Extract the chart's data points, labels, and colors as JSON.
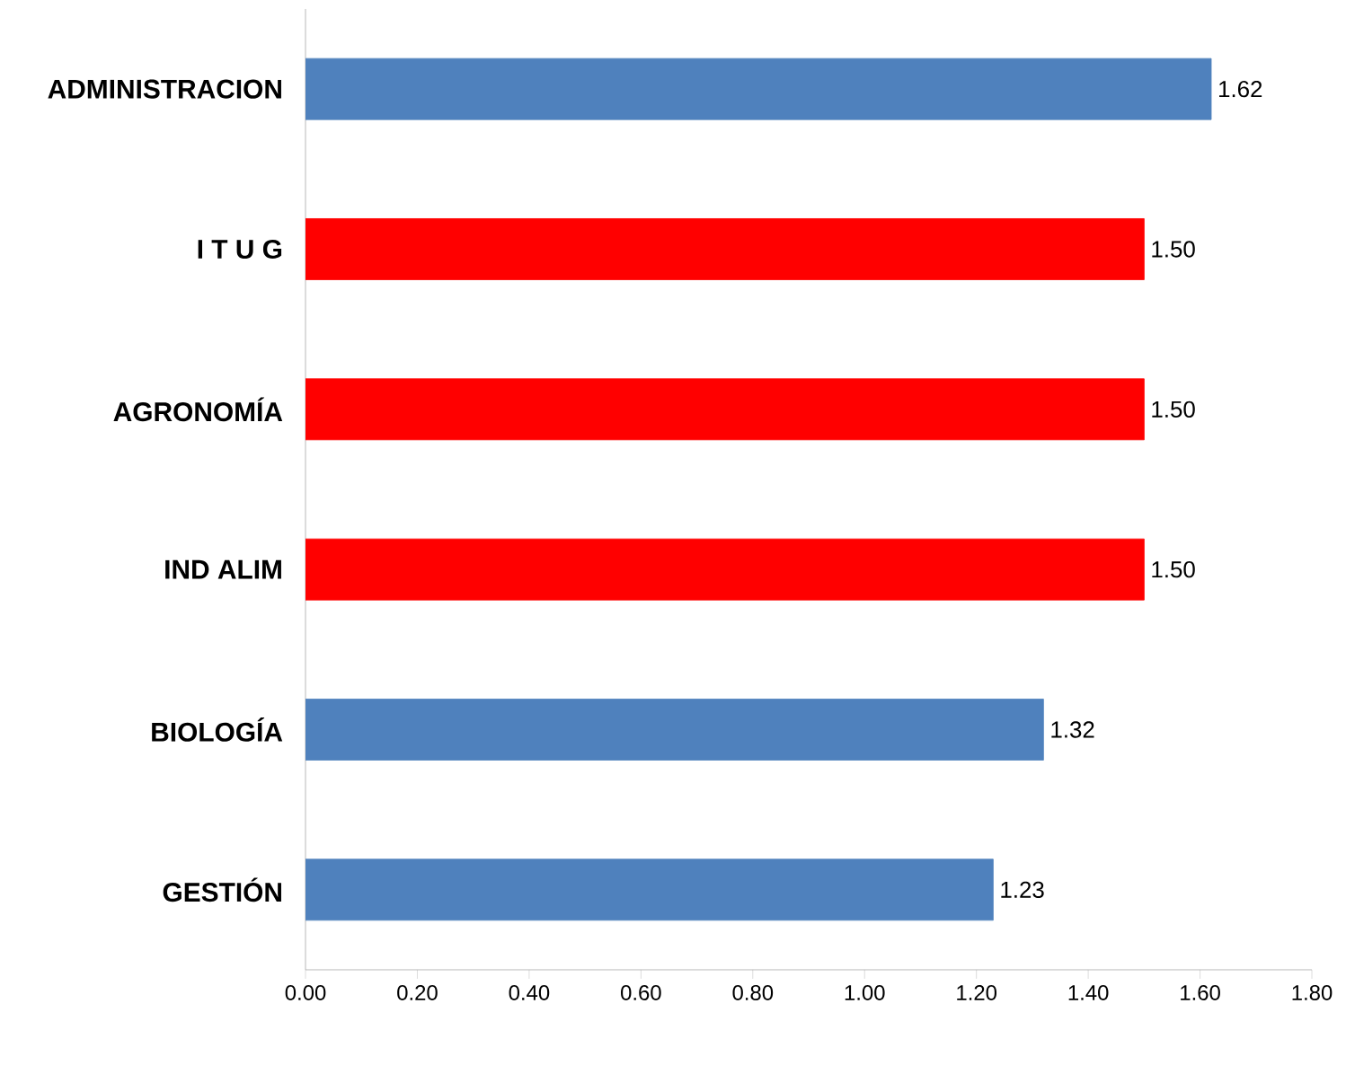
{
  "chart_data": {
    "type": "bar",
    "orientation": "horizontal",
    "categories": [
      "ADMINISTRACION",
      "I T U G",
      "AGRONOMÍA",
      "IND ALIM",
      "BIOLOGÍA",
      "GESTIÓN"
    ],
    "values": [
      1.62,
      1.5,
      1.5,
      1.5,
      1.32,
      1.23
    ],
    "colors": [
      "#4f81bd",
      "#ff0000",
      "#ff0000",
      "#ff0000",
      "#4f81bd",
      "#4f81bd"
    ],
    "value_labels": [
      "1.62",
      "1.50",
      "1.50",
      "1.50",
      "1.32",
      "1.23"
    ],
    "xlim": [
      0,
      1.8
    ],
    "xticks": [
      {
        "value": 0,
        "label": "0.00"
      },
      {
        "value": 0.2,
        "label": "0.20"
      },
      {
        "value": 0.4,
        "label": "0.40"
      },
      {
        "value": 0.6,
        "label": "0.60"
      },
      {
        "value": 0.8,
        "label": "0.80"
      },
      {
        "value": 1.0,
        "label": "1.00"
      },
      {
        "value": 1.2,
        "label": "1.20"
      },
      {
        "value": 1.4,
        "label": "1.40"
      },
      {
        "value": 1.6,
        "label": "1.60"
      },
      {
        "value": 1.8,
        "label": "1.80"
      }
    ],
    "grid": false
  }
}
